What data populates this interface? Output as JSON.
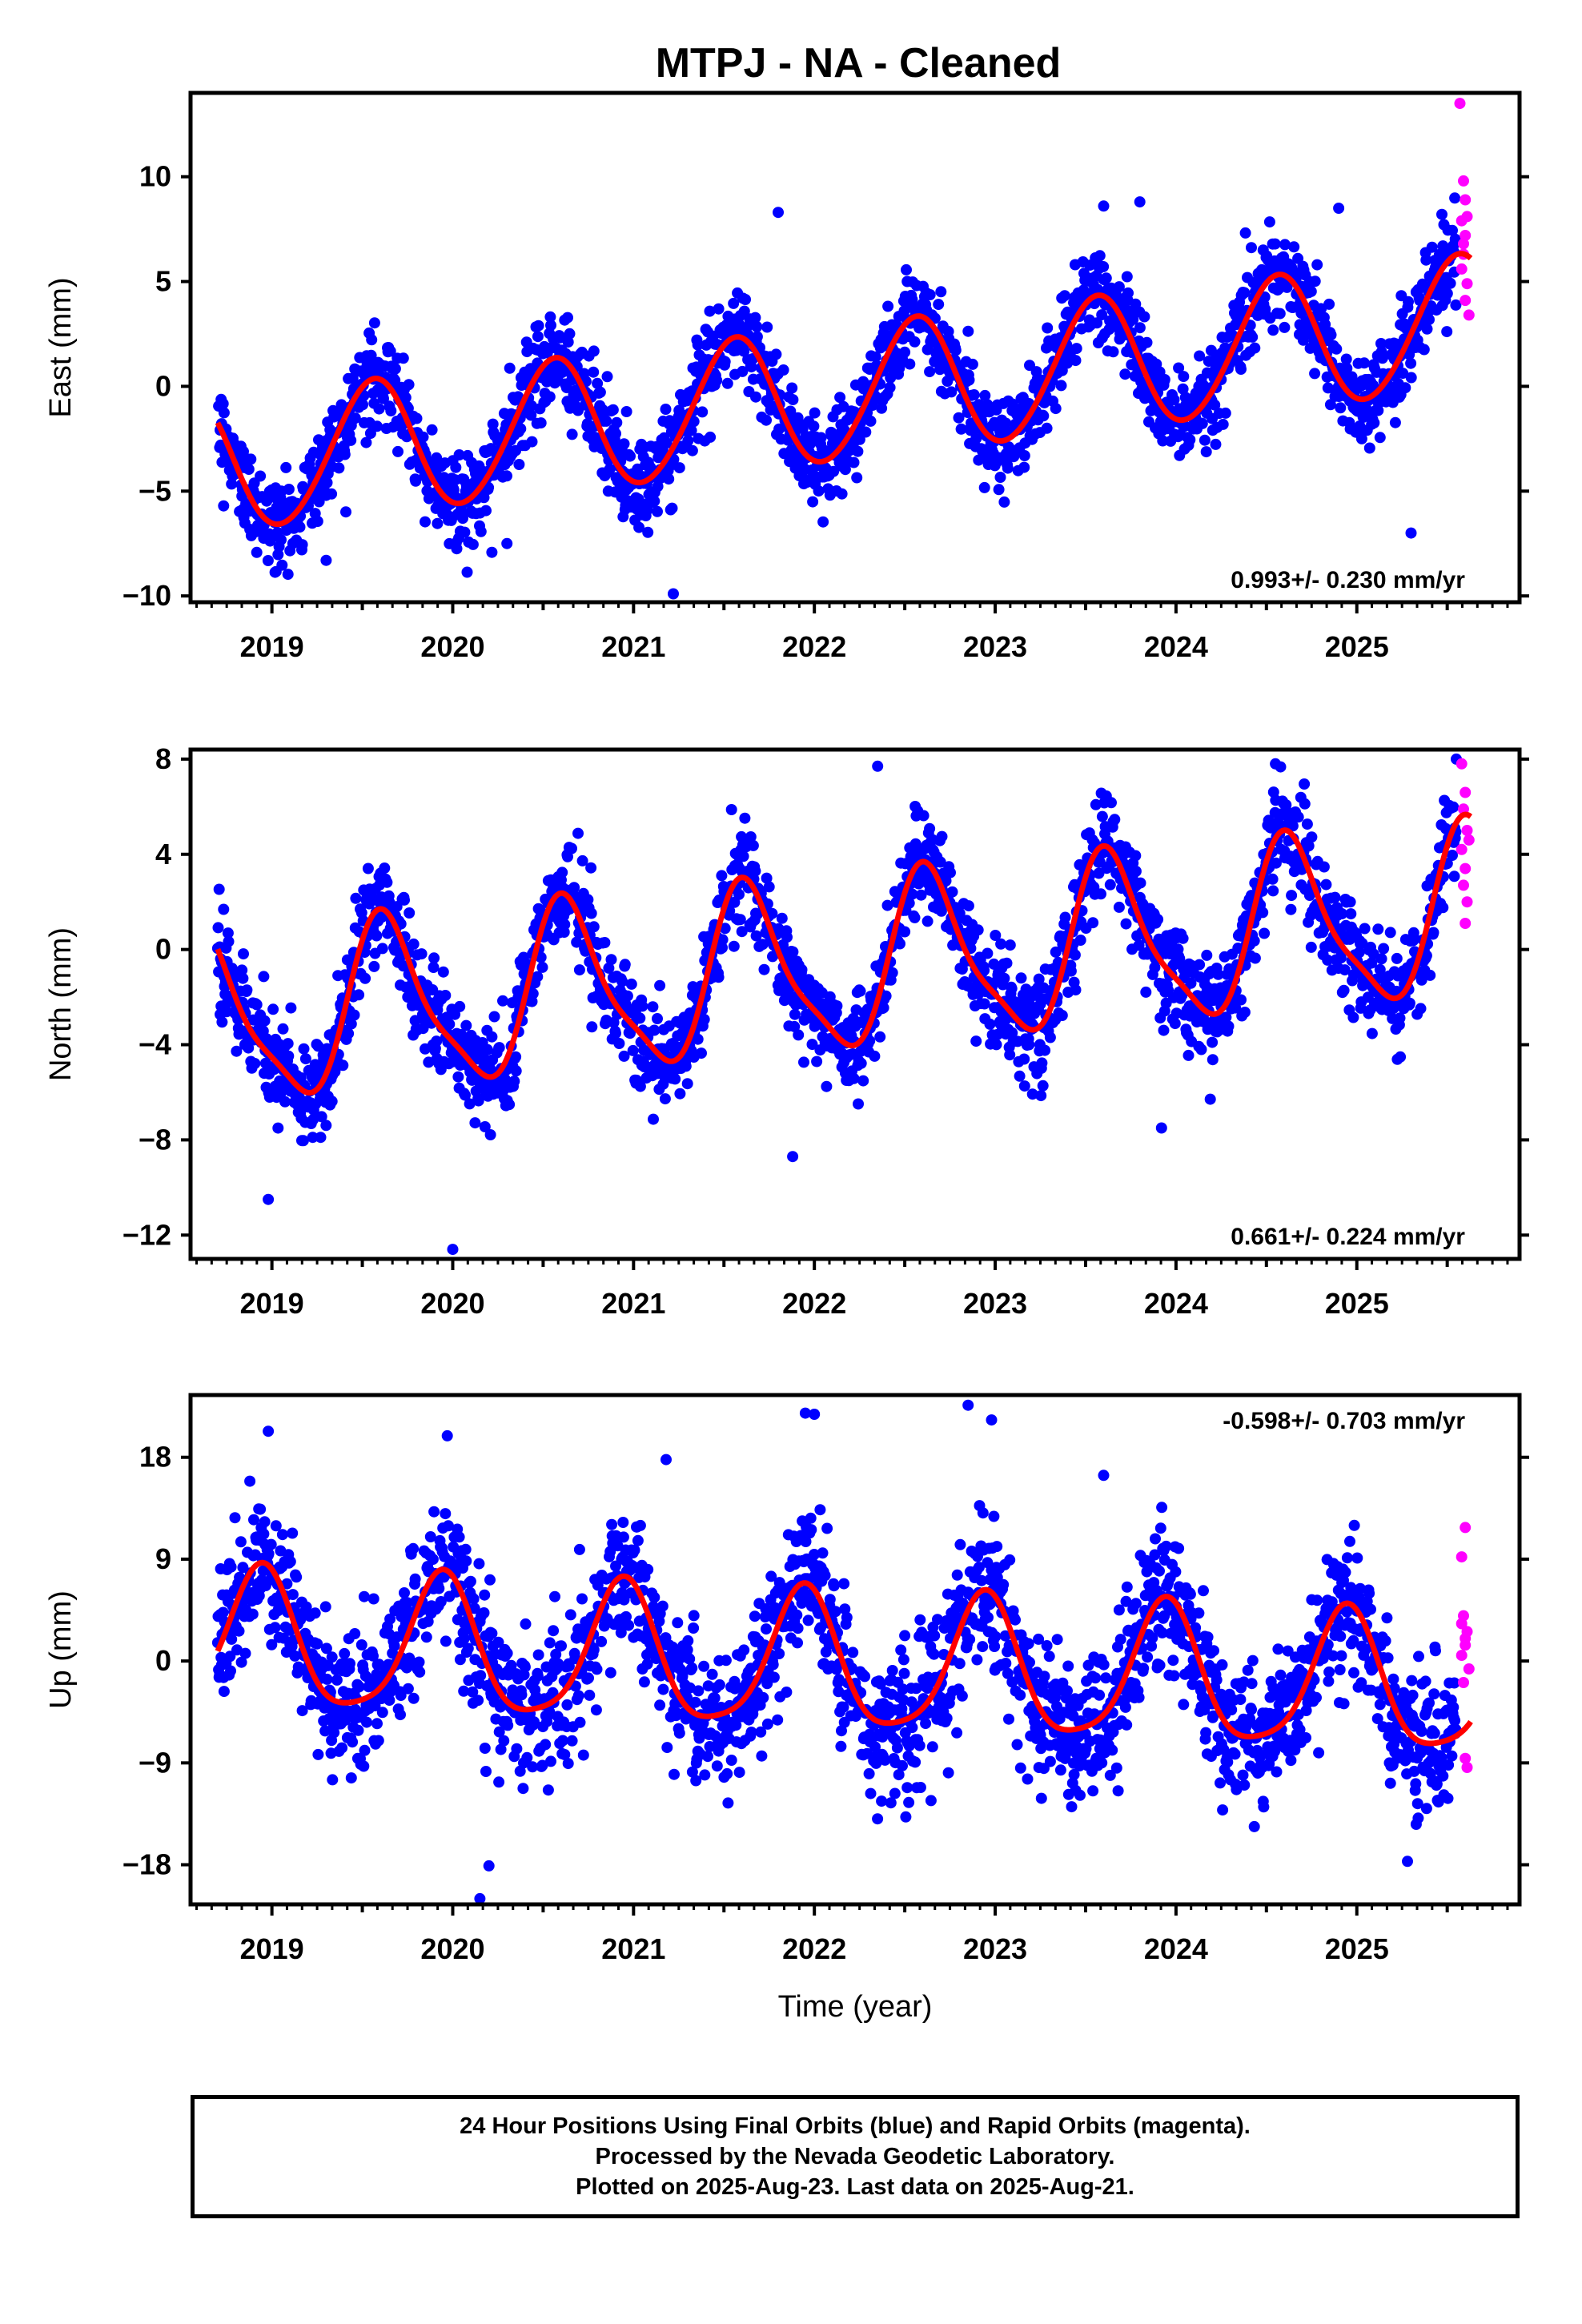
{
  "title": "MTPJ  - NA - Cleaned",
  "footer": {
    "line1": "24 Hour Positions Using Final Orbits (blue) and Rapid Orbits (magenta).",
    "line2": "Processed by the Nevada Geodetic Laboratory.",
    "line3": "Plotted on 2025-Aug-23. Last data on 2025-Aug-21."
  },
  "colors": {
    "final_orbits": "#0000ff",
    "rapid_orbits": "#ff00ff",
    "model_fit": "#ff0000"
  },
  "chart_data": [
    {
      "type": "scatter",
      "component": "East",
      "ylabel": "East (mm)",
      "xlabel": "",
      "xlim": [
        2018.55,
        2025.9
      ],
      "ylim": [
        -10.3,
        14
      ],
      "yticks": [
        -10,
        -5,
        0,
        5,
        10
      ],
      "xticks": [
        2019,
        2020,
        2021,
        2022,
        2023,
        2024,
        2025
      ],
      "rate": "0.993+/- 0.230 mm/yr",
      "rate_position": "bottom-right",
      "fit": {
        "offset": -0.55,
        "rate": 0.993,
        "ref_year": 2022.0,
        "cos1": -3.0,
        "sin1": -1.1,
        "cos2": 0.0,
        "sin2": 0.2
      },
      "scatter_sd": 1.1,
      "series": [
        {
          "name": "Final orbits (blue)",
          "start": 2018.7,
          "end": 2025.55,
          "outliers": [
            [
              2021.22,
              -9.9
            ],
            [
              2021.8,
              8.3
            ],
            [
              2023.6,
              8.6
            ],
            [
              2023.8,
              8.8
            ],
            [
              2024.9,
              8.5
            ],
            [
              2025.3,
              -7.0
            ],
            [
              2019.3,
              -8.3
            ],
            [
              2020.3,
              -7.5
            ]
          ]
        },
        {
          "name": "Rapid orbits (magenta)",
          "start": 2025.55,
          "end": 2025.63,
          "points": [
            [
              2025.57,
              13.5
            ],
            [
              2025.59,
              9.8
            ],
            [
              2025.6,
              8.9
            ],
            [
              2025.58,
              7.9
            ],
            [
              2025.6,
              7.2
            ],
            [
              2025.59,
              6.3
            ],
            [
              2025.58,
              5.6
            ],
            [
              2025.61,
              4.9
            ],
            [
              2025.6,
              4.1
            ],
            [
              2025.62,
              3.4
            ],
            [
              2025.59,
              6.8
            ],
            [
              2025.61,
              8.1
            ]
          ]
        }
      ]
    },
    {
      "type": "scatter",
      "component": "North",
      "ylabel": "North (mm)",
      "xlabel": "",
      "xlim": [
        2018.55,
        2025.9
      ],
      "ylim": [
        -13,
        8.4
      ],
      "yticks": [
        -12,
        -8,
        -4,
        0,
        4,
        8
      ],
      "xticks": [
        2019,
        2020,
        2021,
        2022,
        2023,
        2024,
        2025
      ],
      "rate": "0.661+/- 0.224 mm/yr",
      "rate_position": "bottom-right",
      "fit": {
        "offset": -0.85,
        "rate": 0.661,
        "ref_year": 2022.0,
        "cos1": -2.3,
        "sin1": -2.6,
        "cos2": 0.6,
        "sin2": 0.6
      },
      "scatter_sd": 1.05,
      "series": [
        {
          "name": "Final orbits (blue)",
          "start": 2018.7,
          "end": 2025.55,
          "outliers": [
            [
              2018.98,
              -10.5
            ],
            [
              2020.0,
              -12.6
            ],
            [
              2021.88,
              -8.7
            ],
            [
              2023.92,
              -7.5
            ],
            [
              2022.35,
              7.7
            ],
            [
              2024.55,
              7.8
            ],
            [
              2025.55,
              8.0
            ],
            [
              2025.22,
              -2.0
            ]
          ]
        },
        {
          "name": "Rapid orbits (magenta)",
          "start": 2025.55,
          "end": 2025.63,
          "points": [
            [
              2025.58,
              7.8
            ],
            [
              2025.6,
              6.6
            ],
            [
              2025.59,
              5.9
            ],
            [
              2025.61,
              5.0
            ],
            [
              2025.58,
              4.2
            ],
            [
              2025.6,
              3.4
            ],
            [
              2025.59,
              2.7
            ],
            [
              2025.61,
              2.0
            ],
            [
              2025.6,
              1.1
            ],
            [
              2025.62,
              4.6
            ]
          ]
        }
      ]
    },
    {
      "type": "scatter",
      "component": "Up",
      "ylabel": "Up (mm)",
      "xlabel": "Time (year)",
      "xlim": [
        2018.55,
        2025.9
      ],
      "ylim": [
        -21.5,
        23.5
      ],
      "yticks": [
        -18,
        -9,
        0,
        9,
        18
      ],
      "xticks": [
        2019,
        2020,
        2021,
        2022,
        2023,
        2024,
        2025
      ],
      "rate": "-0.598+/- 0.703 mm/yr",
      "rate_position": "top-right",
      "fit": {
        "offset": -0.3,
        "rate": -0.598,
        "ref_year": 2022.0,
        "cos1": 5.6,
        "sin1": -2.2,
        "cos2": 1.0,
        "sin2": -0.6
      },
      "scatter_sd": 3.1,
      "series": [
        {
          "name": "Final orbits (blue)",
          "start": 2018.7,
          "end": 2025.55,
          "outliers": [
            [
              2020.15,
              -21.0
            ],
            [
              2020.2,
              -18.1
            ],
            [
              2018.98,
              20.3
            ],
            [
              2019.97,
              19.9
            ],
            [
              2021.95,
              21.9
            ],
            [
              2022.0,
              21.8
            ],
            [
              2022.85,
              22.6
            ],
            [
              2022.98,
              21.3
            ],
            [
              2023.6,
              16.4
            ],
            [
              2021.18,
              17.8
            ],
            [
              2025.28,
              -17.7
            ]
          ]
        },
        {
          "name": "Rapid orbits (magenta)",
          "start": 2025.55,
          "end": 2025.63,
          "points": [
            [
              2025.6,
              11.8
            ],
            [
              2025.58,
              9.2
            ],
            [
              2025.59,
              4.0
            ],
            [
              2025.61,
              2.6
            ],
            [
              2025.6,
              1.4
            ],
            [
              2025.58,
              0.5
            ],
            [
              2025.62,
              -0.7
            ],
            [
              2025.59,
              -1.9
            ],
            [
              2025.6,
              -8.6
            ],
            [
              2025.61,
              -9.4
            ],
            [
              2025.58,
              3.3
            ],
            [
              2025.6,
              2.0
            ]
          ]
        }
      ]
    }
  ]
}
